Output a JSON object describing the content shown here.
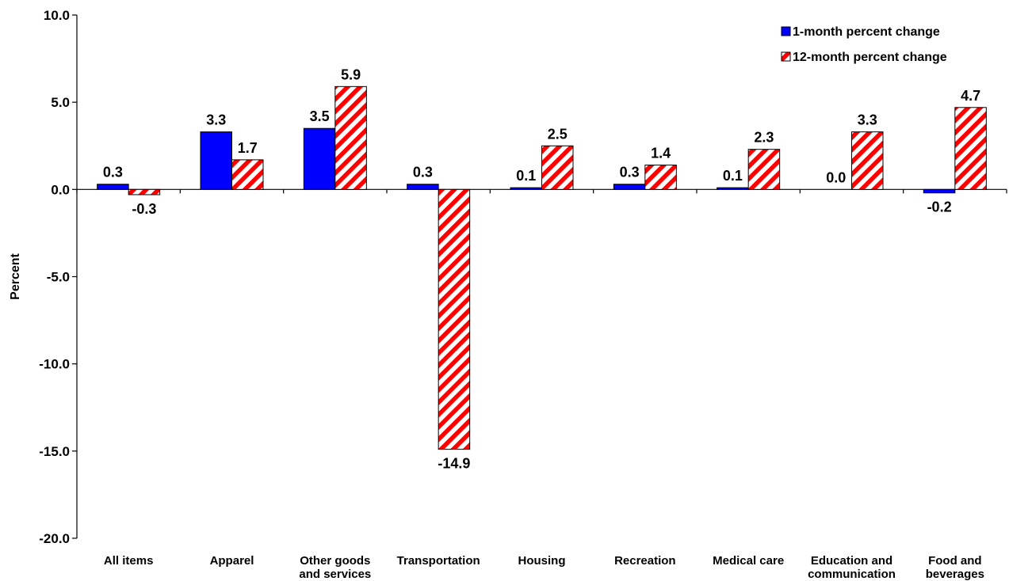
{
  "chart_data": {
    "type": "bar",
    "title": "",
    "xlabel": "",
    "ylabel": "Percent",
    "ylim": [
      -20,
      10
    ],
    "yticks": [
      10,
      5,
      0,
      -5,
      -10,
      -15,
      -20
    ],
    "ytick_labels": [
      "10.0",
      "5.0",
      "0.0",
      "-5.0",
      "-10.0",
      "-15.0",
      "-20.0"
    ],
    "grid": false,
    "legend_position": "top-right",
    "categories": [
      [
        "All items"
      ],
      [
        "Apparel"
      ],
      [
        "Other goods",
        "and services"
      ],
      [
        "Transportation"
      ],
      [
        "Housing"
      ],
      [
        "Recreation"
      ],
      [
        "Medical care"
      ],
      [
        "Education and",
        "communication"
      ],
      [
        "Food and",
        "beverages"
      ]
    ],
    "series": [
      {
        "name": "1-month percent change",
        "color": "#0000ff",
        "pattern": "solid",
        "values": [
          0.3,
          3.3,
          3.5,
          0.3,
          0.1,
          0.3,
          0.1,
          0.0,
          -0.2
        ],
        "labels": [
          "0.3",
          "3.3",
          "3.5",
          "0.3",
          "0.1",
          "0.3",
          "0.1",
          "0.0",
          "-0.2"
        ]
      },
      {
        "name": "12-month percent change",
        "color": "#ff0000",
        "pattern": "diagonal-stripes",
        "values": [
          -0.3,
          1.7,
          5.9,
          -14.9,
          2.5,
          1.4,
          2.3,
          3.3,
          4.7
        ],
        "labels": [
          "-0.3",
          "1.7",
          "5.9",
          "-14.9",
          "2.5",
          "1.4",
          "2.3",
          "3.3",
          "4.7"
        ]
      }
    ]
  }
}
